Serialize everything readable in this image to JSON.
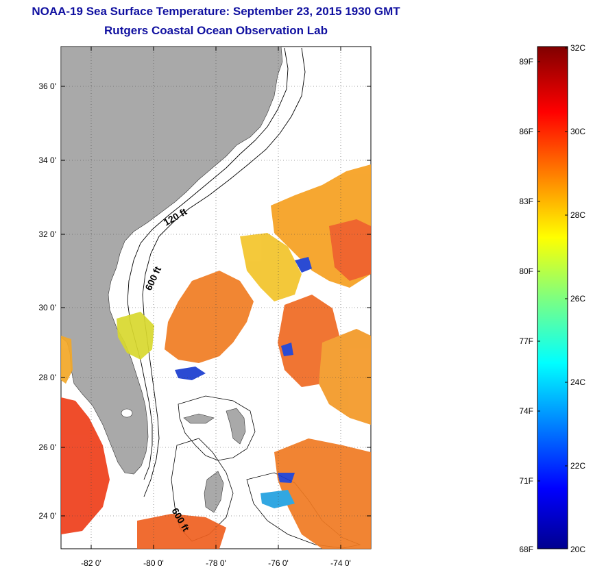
{
  "header": {
    "title": "NOAA-19 Sea Surface Temperature:  September 23, 2015 1930 GMT",
    "subtitle": "Rutgers Coastal Ocean Observation Lab"
  },
  "map": {
    "lat_ticks": [
      "36 0'",
      "34 0'",
      "32 0'",
      "30 0'",
      "28 0'",
      "26 0'",
      "24 0'"
    ],
    "lon_ticks": [
      "-82 0'",
      "-80 0'",
      "-78 0'",
      "-76 0'",
      "-74 0'"
    ],
    "contour_labels": [
      "120 ft",
      "600 ft",
      "600 ft"
    ],
    "land_color": "#a9a9a9",
    "ocean_color": "#ffffff"
  },
  "colorbar": {
    "fahrenheit_labels": [
      "89F",
      "86F",
      "83F",
      "80F",
      "77F",
      "74F",
      "71F",
      "68F"
    ],
    "celsius_labels": [
      "32C",
      "30C",
      "28C",
      "26C",
      "24C",
      "22C",
      "20C"
    ],
    "range_c": [
      20,
      32
    ],
    "colormap": "jet"
  }
}
